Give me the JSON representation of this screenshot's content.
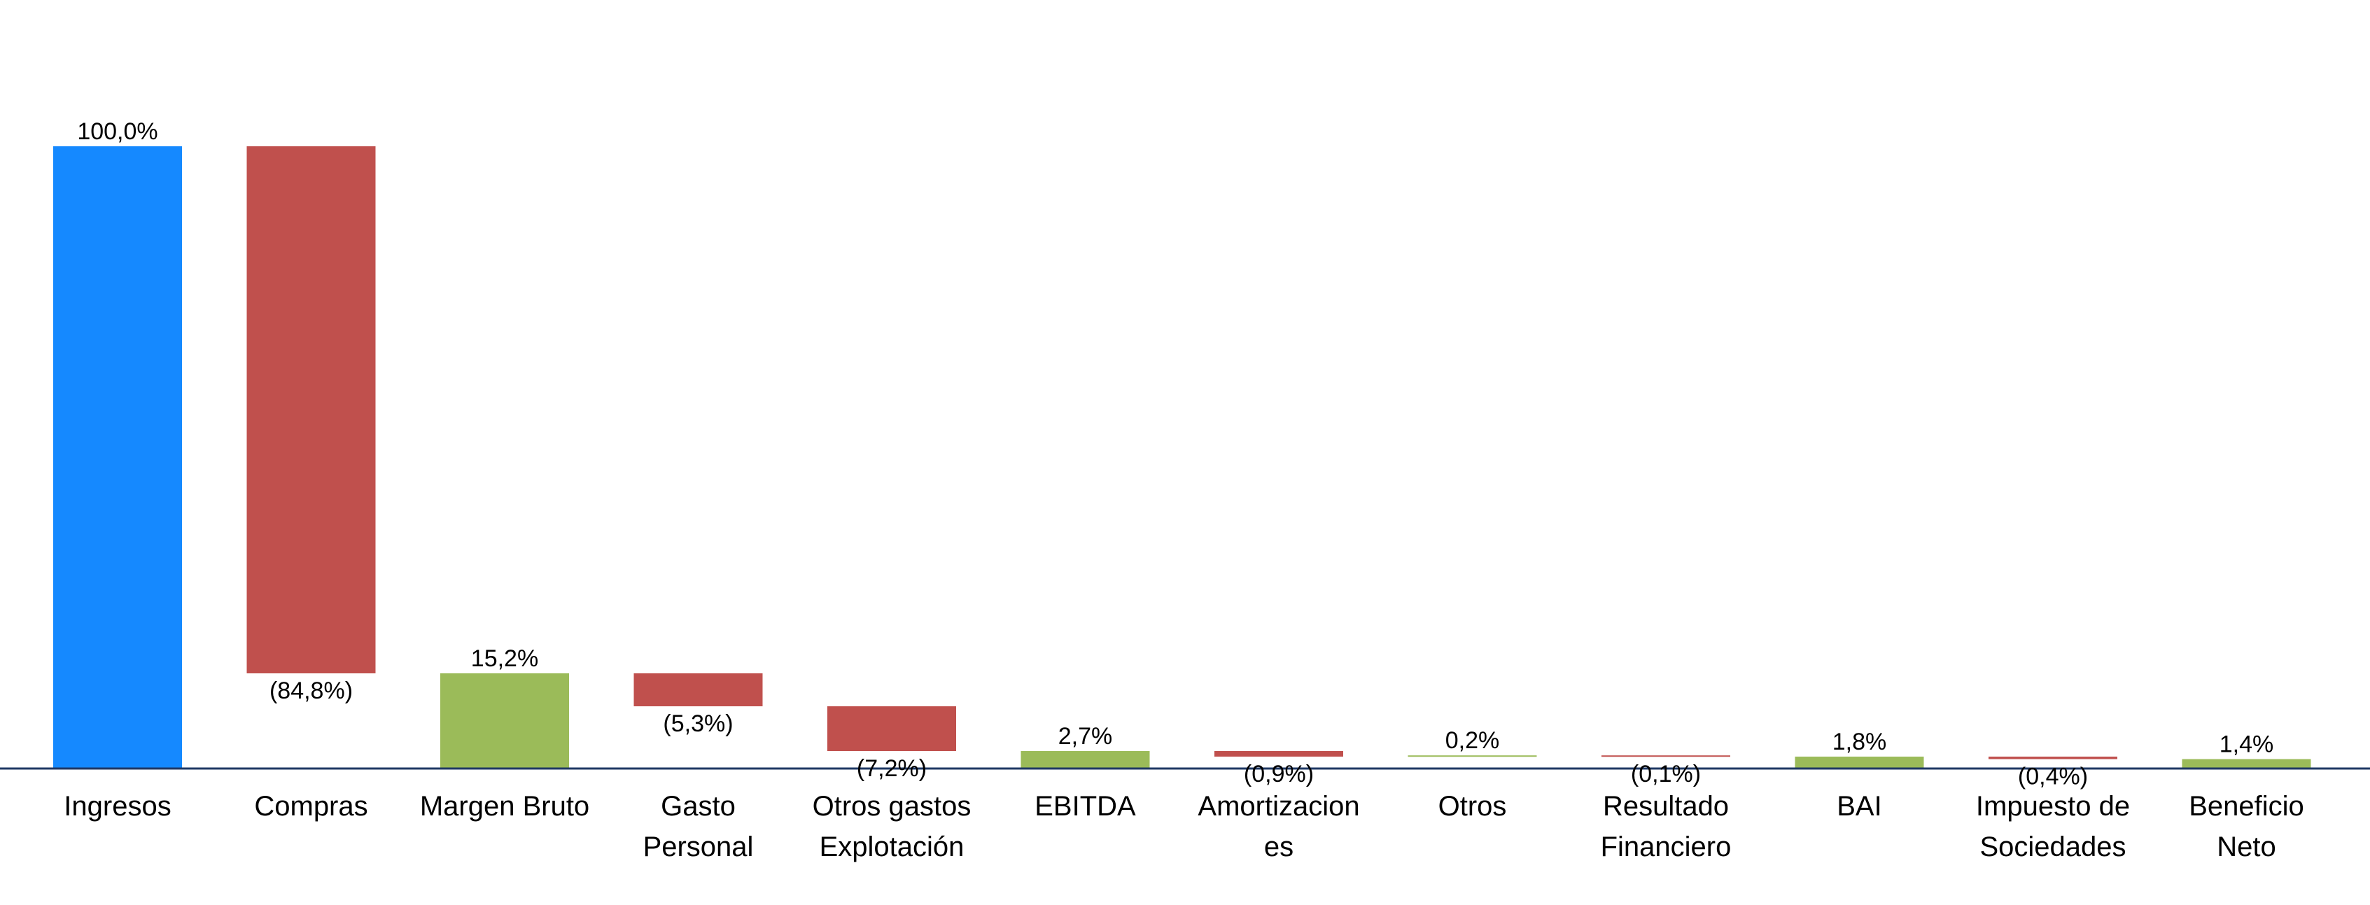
{
  "chart_data": {
    "type": "bar",
    "subtype": "waterfall",
    "title": "",
    "xlabel": "",
    "ylabel": "",
    "ylim": [
      0,
      100
    ],
    "grid": false,
    "legend": "none",
    "categories": [
      "Ingresos",
      "Compras",
      "Margen Bruto",
      "Gasto Personal",
      "Otros gastos Explotación",
      "EBITDA",
      "Amortizaciones",
      "Otros",
      "Resultado Financiero",
      "BAI",
      "Impuesto de Sociedades",
      "Beneficio Neto"
    ],
    "x_tick_lines": [
      [
        "Ingresos"
      ],
      [
        "Compras"
      ],
      [
        "Margen Bruto"
      ],
      [
        "Gasto",
        "Personal"
      ],
      [
        "Otros gastos",
        "Explotación"
      ],
      [
        "EBITDA"
      ],
      [
        "Amortizacion",
        "es"
      ],
      [
        "Otros"
      ],
      [
        "Resultado",
        "Financiero"
      ],
      [
        "BAI"
      ],
      [
        "Impuesto de",
        "Sociedades"
      ],
      [
        "Beneficio",
        "Neto"
      ]
    ],
    "values": [
      100.0,
      -84.8,
      15.2,
      -5.3,
      -7.2,
      2.7,
      -0.9,
      0.2,
      -0.1,
      1.8,
      -0.4,
      1.4
    ],
    "bar_kind": [
      "total",
      "decrease",
      "subtotal",
      "decrease",
      "decrease",
      "subtotal",
      "decrease",
      "increase",
      "decrease",
      "subtotal",
      "decrease",
      "subtotal"
    ],
    "data_labels": [
      "100,0%",
      "(84,8%)",
      "15,2%",
      "(5,3%)",
      "(7,2%)",
      "2,7%",
      "(0,9%)",
      "0,2%",
      "(0,1%)",
      "1,8%",
      "(0,4%)",
      "1,4%"
    ],
    "colors": {
      "total": "#1589FF",
      "decrease": "#C0504D",
      "subtotal": "#9BBB59",
      "increase": "#9BBB59",
      "axis": "#1F3864"
    }
  }
}
